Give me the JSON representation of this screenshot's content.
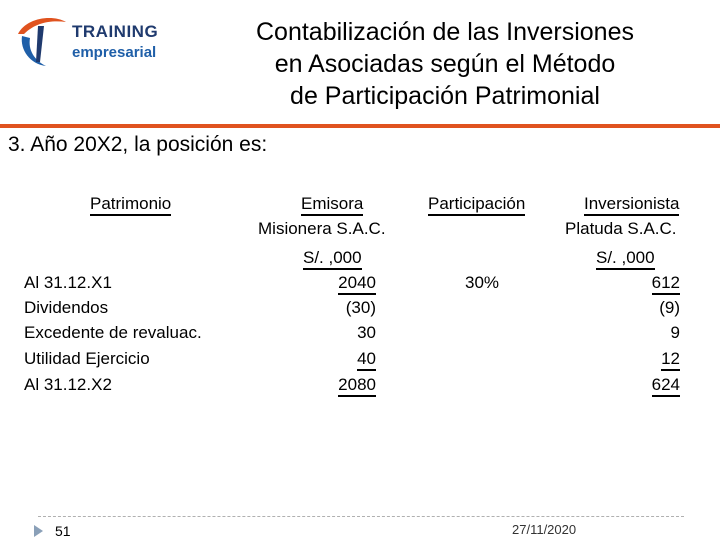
{
  "logo": {
    "line1": "TRAINING",
    "line2": "empresarial"
  },
  "title": {
    "line1": "Contabilización de las Inversiones",
    "line2": "en Asociadas según el Método",
    "line3": "de Participación Patrimonial"
  },
  "subtitle": "3. Año 20X2, la posición es:",
  "table": {
    "headers": {
      "patrimonio": "Patrimonio",
      "emisora": "Emisora",
      "participacion": "Participación",
      "inversionista": "Inversionista"
    },
    "emisora_name": "Misionera S.A.C.",
    "inversionista_name": "Platuda S.A.C.",
    "emisora_unit": "S/. ,000",
    "inversionista_unit": "S/. ,000",
    "rows": [
      {
        "label": "Al 31.12.X1",
        "emisora": "2040",
        "participacion": "30%",
        "inversionista": "612"
      },
      {
        "label": "Dividendos",
        "emisora": "(30)",
        "participacion": "",
        "inversionista": "(9)"
      },
      {
        "label": "Excedente de revaluac.",
        "emisora": "30",
        "participacion": "",
        "inversionista": "9"
      },
      {
        "label": "Utilidad Ejercicio",
        "emisora": "40",
        "participacion": "",
        "inversionista": "12"
      },
      {
        "label": "Al 31.12.X2",
        "emisora": "2080",
        "participacion": "",
        "inversionista": "624"
      }
    ]
  },
  "footer": {
    "page_number": "51",
    "date": "27/11/2020"
  },
  "colors": {
    "accent_rule": "#e0531f",
    "logo_dark": "#1f3a6e",
    "logo_blue": "#1f5fa8"
  }
}
